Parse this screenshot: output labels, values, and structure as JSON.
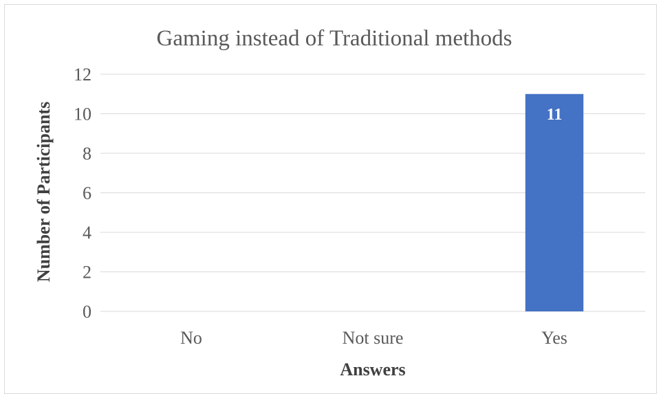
{
  "chart_data": {
    "type": "bar",
    "title": "Gaming instead of Traditional methods",
    "xlabel": "Answers",
    "ylabel": "Number of Participants",
    "categories": [
      "No",
      "Not sure",
      "Yes"
    ],
    "values": [
      0,
      0,
      11
    ],
    "data_labels": [
      "",
      "",
      "11"
    ],
    "ylim": [
      0,
      12
    ],
    "yticks": [
      0,
      2,
      4,
      6,
      8,
      10,
      12
    ],
    "grid": true,
    "legend": "none",
    "bar_color": "#4472c4",
    "label_color": "#ffffff"
  }
}
